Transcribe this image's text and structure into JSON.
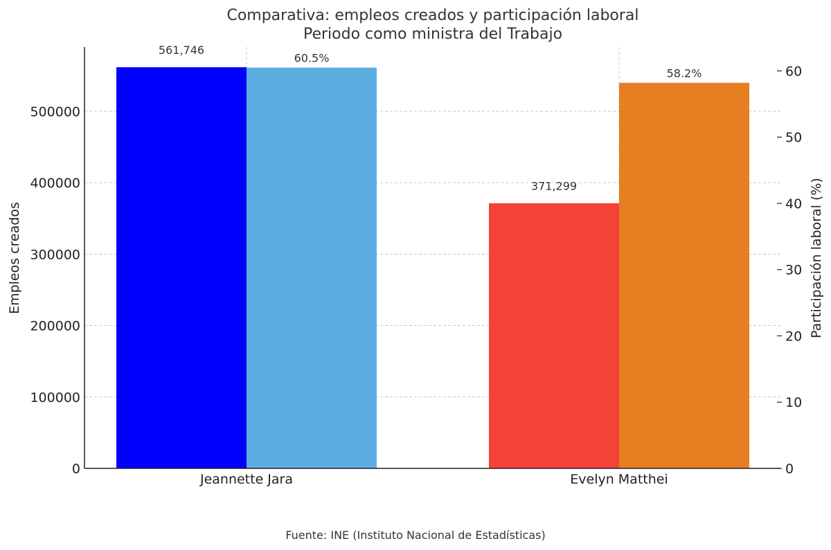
{
  "chart_data": {
    "type": "bar",
    "title": "Comparativa: empleos creados y participación laboral",
    "subtitle": "Periodo como ministra del Trabajo",
    "categories": [
      "Jeannette Jara",
      "Evelyn Matthei"
    ],
    "series": [
      {
        "name": "Empleos creados",
        "axis": "left",
        "values": [
          561746,
          371299
        ],
        "labels": [
          "561,746",
          "371,299"
        ],
        "colors": [
          "#0000ff",
          "#f44336"
        ]
      },
      {
        "name": "Participación laboral (%)",
        "axis": "right",
        "values": [
          60.5,
          58.2
        ],
        "labels": [
          "60.5%",
          "58.2%"
        ],
        "colors": [
          "#5dade2",
          "#e67e22"
        ]
      }
    ],
    "ylabel": "Empleos creados",
    "ylabel_right": "Participación laboral (%)",
    "ylim": [
      0,
      590000
    ],
    "ylim_right": [
      0,
      63.6
    ],
    "yticks": [
      0,
      100000,
      200000,
      300000,
      400000,
      500000
    ],
    "yticks_right": [
      0,
      10,
      20,
      30,
      40,
      50,
      60
    ],
    "grid": true,
    "grid_style": "dashed"
  },
  "footer": "Fuente: INE (Instituto Nacional de Estadísticas)"
}
